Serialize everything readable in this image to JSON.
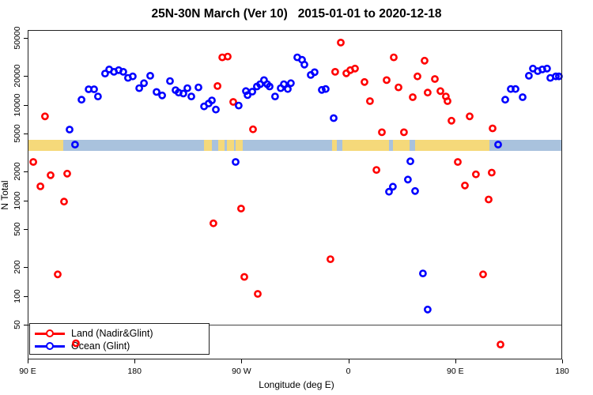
{
  "title": "25N-30N March (Ver 10)   2015-01-01 to 2020-12-18",
  "chart_data": {
    "type": "scatter",
    "title": "25N-30N March (Ver 10)   2015-01-01 to 2020-12-18",
    "xlabel": "Longitude (deg E)",
    "ylabel": "N Total",
    "y_scale": "log10",
    "ylim": [
      21,
      60000
    ],
    "y_ticks": [
      50000,
      20000,
      10000,
      5000,
      2000,
      1000,
      500,
      200,
      100,
      50
    ],
    "x_axis_span_deg": 450,
    "x_ticks": [
      {
        "deg": 0,
        "label": "90 E"
      },
      {
        "deg": 90,
        "label": "180"
      },
      {
        "deg": 180,
        "label": "90 W"
      },
      {
        "deg": 270,
        "label": "0"
      },
      {
        "deg": 360,
        "label": "90 E"
      },
      {
        "deg": 450,
        "label": "180"
      }
    ],
    "grid": false,
    "legend_position": "bottom-left",
    "reference_line_value": 50,
    "reference_line_color": "#444444",
    "surface_band": {
      "v_top": 4300,
      "v_bottom": 3290,
      "ocean_color": "#a9c2dd",
      "land_color": "#f5d97a",
      "land_segments_frac": [
        [
          0.0,
          0.067
        ],
        [
          0.33,
          0.344
        ],
        [
          0.357,
          0.369
        ],
        [
          0.373,
          0.386
        ],
        [
          0.389,
          0.403
        ],
        [
          0.57,
          0.578
        ],
        [
          0.589,
          0.676
        ],
        [
          0.683,
          0.714
        ],
        [
          0.725,
          0.864
        ]
      ]
    },
    "series": [
      {
        "name": "Land (Nadir&Glint)",
        "color": "#ff0000",
        "points": [
          [
            4.7,
            2520
          ],
          [
            10.7,
            1400
          ],
          [
            14.6,
            7550
          ],
          [
            19.3,
            1830
          ],
          [
            25.3,
            168
          ],
          [
            30.6,
            970
          ],
          [
            33.3,
            1900
          ],
          [
            40.6,
            32
          ],
          [
            156.4,
            575
          ],
          [
            159.8,
            15700
          ],
          [
            163.8,
            31300
          ],
          [
            168.4,
            31900
          ],
          [
            173.1,
            10700
          ],
          [
            179.7,
            820
          ],
          [
            182.4,
            158
          ],
          [
            189.7,
            5530
          ],
          [
            193.7,
            105
          ],
          [
            254.9,
            242
          ],
          [
            258.9,
            22100
          ],
          [
            263.6,
            44700
          ],
          [
            268.3,
            21300
          ],
          [
            271.6,
            23000
          ],
          [
            275.6,
            23900
          ],
          [
            283.6,
            17300
          ],
          [
            288.2,
            10900
          ],
          [
            293.6,
            2080
          ],
          [
            298.2,
            5150
          ],
          [
            302.2,
            18100
          ],
          [
            308.2,
            31300
          ],
          [
            312.2,
            15200
          ],
          [
            316.8,
            5150
          ],
          [
            324.2,
            12000
          ],
          [
            328.2,
            19800
          ],
          [
            334.2,
            28900
          ],
          [
            336.8,
            13400
          ],
          [
            342.8,
            18600
          ],
          [
            347.5,
            13900
          ],
          [
            352.1,
            12200
          ],
          [
            353.5,
            10900
          ],
          [
            356.8,
            6800
          ],
          [
            362.1,
            2520
          ],
          [
            368.1,
            1430
          ],
          [
            372.1,
            7550
          ],
          [
            377.4,
            1870
          ],
          [
            383.4,
            168
          ],
          [
            388.1,
            1020
          ],
          [
            390.7,
            1950
          ],
          [
            391.4,
            5660
          ],
          [
            398.1,
            31
          ]
        ]
      },
      {
        "name": "Ocean (Glint)",
        "color": "#0000ff",
        "points": [
          [
            35.3,
            5500
          ],
          [
            39.9,
            3830
          ],
          [
            45.3,
            11300
          ],
          [
            51.3,
            14500
          ],
          [
            55.9,
            14500
          ],
          [
            59.2,
            12200
          ],
          [
            65.2,
            21200
          ],
          [
            68.6,
            23400
          ],
          [
            72.6,
            22100
          ],
          [
            76.6,
            23000
          ],
          [
            80.5,
            22100
          ],
          [
            84.5,
            19100
          ],
          [
            88.5,
            19800
          ],
          [
            93.9,
            14900
          ],
          [
            97.9,
            16800
          ],
          [
            103.2,
            20100
          ],
          [
            108.5,
            13600
          ],
          [
            113.2,
            12500
          ],
          [
            119.8,
            17700
          ],
          [
            124.5,
            14200
          ],
          [
            127.1,
            13400
          ],
          [
            131.1,
            13100
          ],
          [
            134.5,
            14900
          ],
          [
            137.8,
            12200
          ],
          [
            143.8,
            15200
          ],
          [
            148.5,
            9600
          ],
          [
            152.4,
            10300
          ],
          [
            155.1,
            11100
          ],
          [
            158.4,
            8900
          ],
          [
            175.1,
            2520
          ],
          [
            177.7,
            9800
          ],
          [
            183.7,
            13900
          ],
          [
            185.1,
            12600
          ],
          [
            189.1,
            13700
          ],
          [
            193.0,
            15500
          ],
          [
            195.7,
            16400
          ],
          [
            199.0,
            18100
          ],
          [
            201.7,
            16400
          ],
          [
            203.7,
            15500
          ],
          [
            208.3,
            12200
          ],
          [
            213.0,
            14900
          ],
          [
            215.7,
            16400
          ],
          [
            219.0,
            14600
          ],
          [
            221.6,
            16800
          ],
          [
            227.0,
            31300
          ],
          [
            231.0,
            29500
          ],
          [
            233.0,
            26300
          ],
          [
            238.3,
            20500
          ],
          [
            241.6,
            21900
          ],
          [
            247.6,
            14300
          ],
          [
            250.9,
            14600
          ],
          [
            257.6,
            7250
          ],
          [
            304.2,
            1230
          ],
          [
            307.5,
            1390
          ],
          [
            320.1,
            1650
          ],
          [
            322.2,
            2560
          ],
          [
            326.2,
            1250
          ],
          [
            332.8,
            172
          ],
          [
            336.8,
            72
          ],
          [
            396.1,
            3830
          ],
          [
            402.1,
            11300
          ],
          [
            406.7,
            14600
          ],
          [
            410.7,
            14600
          ],
          [
            416.7,
            12000
          ],
          [
            422.0,
            20100
          ],
          [
            425.4,
            23900
          ],
          [
            429.4,
            22500
          ],
          [
            433.3,
            23400
          ],
          [
            437.3,
            23900
          ],
          [
            440.0,
            19100
          ],
          [
            444.7,
            19800
          ],
          [
            447.3,
            19800
          ]
        ]
      }
    ]
  }
}
